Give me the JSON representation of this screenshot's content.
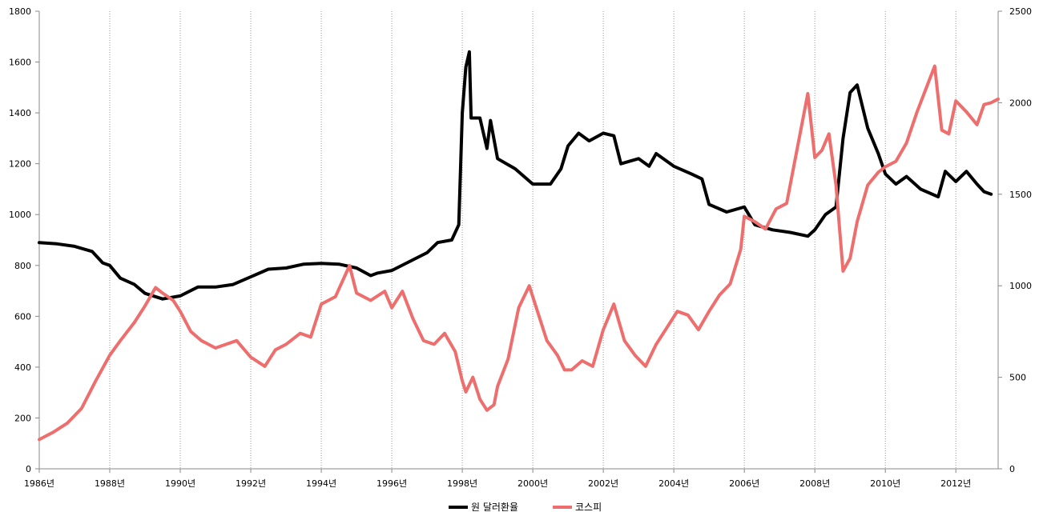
{
  "chart_data": {
    "type": "line",
    "title": "",
    "xlabel": "",
    "ylabel_left": "",
    "ylabel_right": "",
    "x_range": [
      1986,
      2013.2
    ],
    "x_ticks": [
      {
        "value": 1986,
        "label": "1986년"
      },
      {
        "value": 1988,
        "label": "1988년"
      },
      {
        "value": 1990,
        "label": "1990년"
      },
      {
        "value": 1992,
        "label": "1992년"
      },
      {
        "value": 1994,
        "label": "1994년"
      },
      {
        "value": 1996,
        "label": "1996년"
      },
      {
        "value": 1998,
        "label": "1998년"
      },
      {
        "value": 2000,
        "label": "2000년"
      },
      {
        "value": 2002,
        "label": "2002년"
      },
      {
        "value": 2004,
        "label": "2004년"
      },
      {
        "value": 2006,
        "label": "2006년"
      },
      {
        "value": 2008,
        "label": "2008년"
      },
      {
        "value": 2010,
        "label": "2010년"
      },
      {
        "value": 2012,
        "label": "2012년"
      }
    ],
    "y_left": {
      "min": 0,
      "max": 1800,
      "ticks": [
        0,
        200,
        400,
        600,
        800,
        1000,
        1200,
        1400,
        1600,
        1800
      ]
    },
    "y_right": {
      "min": 0,
      "max": 2500,
      "ticks": [
        0,
        500,
        1000,
        1500,
        2000,
        2500
      ]
    },
    "vertical_grid": "dotted, every 2 years",
    "legend_position": "bottom-center",
    "series": [
      {
        "name": "원 달러환율",
        "axis": "left",
        "color": "#000000",
        "points": [
          [
            1986.0,
            890
          ],
          [
            1986.5,
            885
          ],
          [
            1987.0,
            875
          ],
          [
            1987.5,
            855
          ],
          [
            1987.8,
            810
          ],
          [
            1988.0,
            800
          ],
          [
            1988.3,
            750
          ],
          [
            1988.7,
            725
          ],
          [
            1989.0,
            690
          ],
          [
            1989.5,
            668
          ],
          [
            1990.0,
            680
          ],
          [
            1990.5,
            715
          ],
          [
            1991.0,
            715
          ],
          [
            1991.5,
            725
          ],
          [
            1992.0,
            755
          ],
          [
            1992.5,
            785
          ],
          [
            1993.0,
            790
          ],
          [
            1993.5,
            805
          ],
          [
            1994.0,
            808
          ],
          [
            1994.5,
            805
          ],
          [
            1995.0,
            790
          ],
          [
            1995.4,
            760
          ],
          [
            1995.6,
            770
          ],
          [
            1996.0,
            780
          ],
          [
            1996.5,
            815
          ],
          [
            1997.0,
            850
          ],
          [
            1997.3,
            890
          ],
          [
            1997.7,
            900
          ],
          [
            1997.9,
            960
          ],
          [
            1998.0,
            1400
          ],
          [
            1998.1,
            1580
          ],
          [
            1998.2,
            1640
          ],
          [
            1998.25,
            1380
          ],
          [
            1998.5,
            1380
          ],
          [
            1998.7,
            1260
          ],
          [
            1998.8,
            1370
          ],
          [
            1999.0,
            1220
          ],
          [
            1999.5,
            1180
          ],
          [
            2000.0,
            1120
          ],
          [
            2000.5,
            1120
          ],
          [
            2000.8,
            1180
          ],
          [
            2001.0,
            1270
          ],
          [
            2001.3,
            1320
          ],
          [
            2001.6,
            1290
          ],
          [
            2002.0,
            1320
          ],
          [
            2002.3,
            1310
          ],
          [
            2002.5,
            1200
          ],
          [
            2003.0,
            1220
          ],
          [
            2003.3,
            1190
          ],
          [
            2003.5,
            1240
          ],
          [
            2004.0,
            1190
          ],
          [
            2004.5,
            1160
          ],
          [
            2004.8,
            1140
          ],
          [
            2005.0,
            1040
          ],
          [
            2005.5,
            1010
          ],
          [
            2006.0,
            1030
          ],
          [
            2006.3,
            960
          ],
          [
            2006.8,
            940
          ],
          [
            2007.3,
            930
          ],
          [
            2007.8,
            915
          ],
          [
            2008.0,
            940
          ],
          [
            2008.3,
            1000
          ],
          [
            2008.6,
            1030
          ],
          [
            2008.8,
            1300
          ],
          [
            2009.0,
            1480
          ],
          [
            2009.2,
            1510
          ],
          [
            2009.5,
            1340
          ],
          [
            2009.8,
            1240
          ],
          [
            2010.0,
            1160
          ],
          [
            2010.3,
            1120
          ],
          [
            2010.6,
            1150
          ],
          [
            2011.0,
            1100
          ],
          [
            2011.5,
            1070
          ],
          [
            2011.7,
            1170
          ],
          [
            2012.0,
            1130
          ],
          [
            2012.3,
            1170
          ],
          [
            2012.6,
            1120
          ],
          [
            2012.8,
            1090
          ],
          [
            2013.0,
            1080
          ]
        ]
      },
      {
        "name": "코스피",
        "axis": "right",
        "color": "#ee6e6e",
        "points": [
          [
            1986.0,
            160
          ],
          [
            1986.4,
            200
          ],
          [
            1986.8,
            250
          ],
          [
            1987.2,
            330
          ],
          [
            1987.6,
            480
          ],
          [
            1988.0,
            620
          ],
          [
            1988.3,
            700
          ],
          [
            1988.7,
            800
          ],
          [
            1989.0,
            890
          ],
          [
            1989.3,
            990
          ],
          [
            1989.5,
            960
          ],
          [
            1989.8,
            920
          ],
          [
            1990.0,
            860
          ],
          [
            1990.3,
            750
          ],
          [
            1990.6,
            700
          ],
          [
            1991.0,
            660
          ],
          [
            1991.3,
            680
          ],
          [
            1991.6,
            700
          ],
          [
            1992.0,
            610
          ],
          [
            1992.4,
            560
          ],
          [
            1992.7,
            650
          ],
          [
            1993.0,
            680
          ],
          [
            1993.4,
            740
          ],
          [
            1993.7,
            720
          ],
          [
            1994.0,
            900
          ],
          [
            1994.4,
            940
          ],
          [
            1994.8,
            1110
          ],
          [
            1995.0,
            960
          ],
          [
            1995.4,
            920
          ],
          [
            1995.8,
            970
          ],
          [
            1996.0,
            880
          ],
          [
            1996.3,
            970
          ],
          [
            1996.6,
            820
          ],
          [
            1996.9,
            700
          ],
          [
            1997.2,
            680
          ],
          [
            1997.5,
            740
          ],
          [
            1997.8,
            640
          ],
          [
            1998.0,
            480
          ],
          [
            1998.1,
            420
          ],
          [
            1998.3,
            500
          ],
          [
            1998.5,
            380
          ],
          [
            1998.7,
            320
          ],
          [
            1998.9,
            350
          ],
          [
            1999.0,
            450
          ],
          [
            1999.3,
            600
          ],
          [
            1999.6,
            880
          ],
          [
            1999.9,
            1000
          ],
          [
            2000.1,
            880
          ],
          [
            2000.4,
            700
          ],
          [
            2000.7,
            620
          ],
          [
            2000.9,
            540
          ],
          [
            2001.1,
            540
          ],
          [
            2001.4,
            590
          ],
          [
            2001.7,
            560
          ],
          [
            2002.0,
            760
          ],
          [
            2002.3,
            900
          ],
          [
            2002.6,
            700
          ],
          [
            2002.9,
            620
          ],
          [
            2003.2,
            560
          ],
          [
            2003.5,
            680
          ],
          [
            2003.8,
            770
          ],
          [
            2004.1,
            860
          ],
          [
            2004.4,
            840
          ],
          [
            2004.7,
            760
          ],
          [
            2005.0,
            860
          ],
          [
            2005.3,
            950
          ],
          [
            2005.6,
            1010
          ],
          [
            2005.9,
            1200
          ],
          [
            2006.0,
            1380
          ],
          [
            2006.3,
            1350
          ],
          [
            2006.6,
            1310
          ],
          [
            2006.9,
            1420
          ],
          [
            2007.2,
            1450
          ],
          [
            2007.4,
            1650
          ],
          [
            2007.6,
            1850
          ],
          [
            2007.8,
            2050
          ],
          [
            2008.0,
            1700
          ],
          [
            2008.2,
            1740
          ],
          [
            2008.4,
            1830
          ],
          [
            2008.6,
            1550
          ],
          [
            2008.8,
            1080
          ],
          [
            2009.0,
            1150
          ],
          [
            2009.2,
            1350
          ],
          [
            2009.5,
            1550
          ],
          [
            2009.8,
            1620
          ],
          [
            2010.0,
            1650
          ],
          [
            2010.3,
            1680
          ],
          [
            2010.6,
            1780
          ],
          [
            2010.9,
            1950
          ],
          [
            2011.2,
            2100
          ],
          [
            2011.4,
            2200
          ],
          [
            2011.6,
            1850
          ],
          [
            2011.8,
            1830
          ],
          [
            2012.0,
            2010
          ],
          [
            2012.3,
            1950
          ],
          [
            2012.6,
            1880
          ],
          [
            2012.8,
            1990
          ],
          [
            2013.0,
            2000
          ],
          [
            2013.2,
            2020
          ]
        ]
      }
    ]
  }
}
